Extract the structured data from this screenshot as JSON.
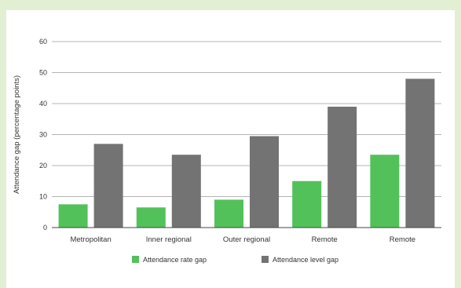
{
  "chart_data": {
    "type": "bar",
    "title": "",
    "xlabel": "",
    "ylabel": "Attendance gap (percentage points)",
    "ylim": [
      0,
      60
    ],
    "yticks": [
      0,
      10,
      20,
      30,
      40,
      50,
      60
    ],
    "categories": [
      "Metropolitan",
      "Inner regional",
      "Outer regional",
      "Remote",
      "Remote"
    ],
    "series": [
      {
        "name": "Attendance rate gap",
        "color": "#52c15a",
        "values": [
          7.5,
          6.5,
          9,
          15,
          23.5
        ]
      },
      {
        "name": "Attendance level gap",
        "color": "#737373",
        "values": [
          27,
          23.5,
          29.5,
          39,
          48
        ]
      }
    ],
    "grid": true,
    "legend_position": "bottom"
  }
}
